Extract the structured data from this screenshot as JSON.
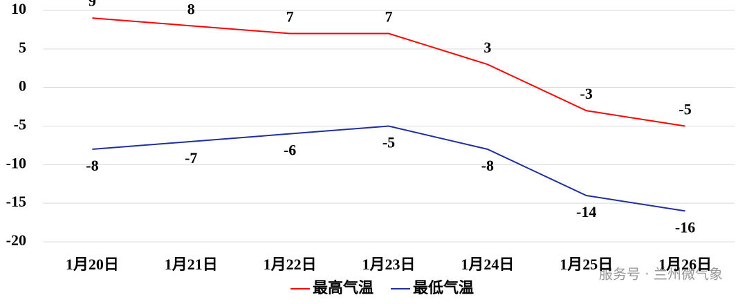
{
  "chart_data": {
    "type": "line",
    "categories": [
      "1月20日",
      "1月21日",
      "1月22日",
      "1月23日",
      "1月24日",
      "1月25日",
      "1月26日"
    ],
    "series": [
      {
        "name": "最高气温",
        "color": "#ff0000",
        "values": [
          9,
          8,
          7,
          7,
          3,
          -3,
          -5
        ]
      },
      {
        "name": "最低气温",
        "color": "#1f2f9f",
        "values": [
          -8,
          -7,
          -6,
          -5,
          -8,
          -14,
          -16
        ]
      }
    ],
    "ylim": [
      -20,
      10
    ],
    "yticks": [
      -20,
      -15,
      -10,
      -5,
      0,
      5,
      10
    ],
    "grid": true,
    "legend": "bottom",
    "watermark": "服务号 · 兰州微气象"
  }
}
